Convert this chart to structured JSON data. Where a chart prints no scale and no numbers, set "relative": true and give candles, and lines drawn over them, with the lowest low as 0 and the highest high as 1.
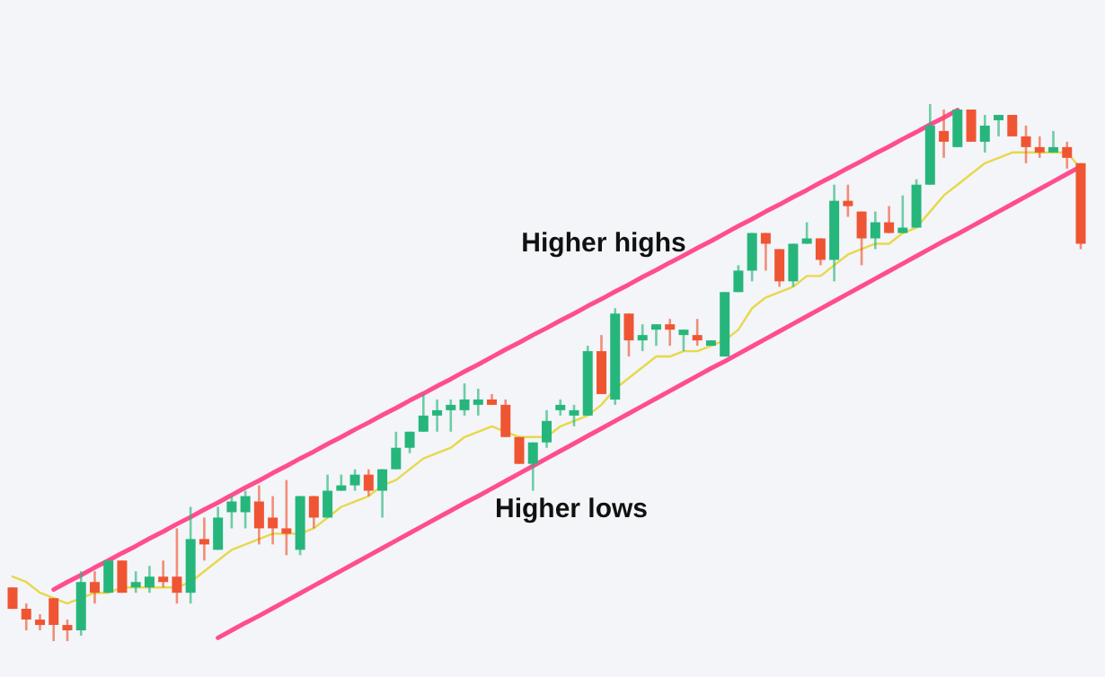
{
  "chart_data": {
    "type": "candlestick",
    "relative": true,
    "categories": [
      null,
      null,
      null,
      null,
      null,
      null,
      null,
      null,
      null,
      null,
      null,
      null,
      null,
      null,
      null,
      null,
      null,
      null,
      null,
      null,
      null,
      null,
      null,
      null,
      null,
      null,
      null,
      null,
      null,
      null,
      null,
      null,
      null,
      null,
      null,
      null,
      null,
      null,
      null,
      null,
      null,
      null,
      null,
      null,
      null,
      null,
      null,
      null,
      null,
      null,
      null,
      null,
      null,
      null,
      null,
      null,
      null,
      null,
      null,
      null,
      null,
      null,
      null,
      null,
      null,
      null,
      null,
      null,
      null,
      null,
      null,
      null,
      null,
      null,
      null,
      null,
      null,
      null,
      null
    ],
    "ohlc": [
      [
        0.1,
        0.1,
        0.06,
        0.06
      ],
      [
        0.06,
        0.07,
        0.02,
        0.04
      ],
      [
        0.04,
        0.05,
        0.02,
        0.03
      ],
      [
        0.08,
        0.08,
        0,
        0.03
      ],
      [
        0.03,
        0.04,
        0,
        0.02
      ],
      [
        0.02,
        0.13,
        0.01,
        0.11
      ],
      [
        0.11,
        0.13,
        0.07,
        0.09
      ],
      [
        0.09,
        0.15,
        0.09,
        0.15
      ],
      [
        0.15,
        0.15,
        0.09,
        0.09
      ],
      [
        0.1,
        0.13,
        0.09,
        0.11
      ],
      [
        0.1,
        0.14,
        0.09,
        0.12
      ],
      [
        0.12,
        0.15,
        0.1,
        0.11
      ],
      [
        0.12,
        0.21,
        0.07,
        0.09
      ],
      [
        0.09,
        0.25,
        0.07,
        0.19
      ],
      [
        0.19,
        0.23,
        0.15,
        0.18
      ],
      [
        0.17,
        0.25,
        0.17,
        0.23
      ],
      [
        0.24,
        0.27,
        0.21,
        0.26
      ],
      [
        0.24,
        0.28,
        0.21,
        0.27
      ],
      [
        0.26,
        0.29,
        0.18,
        0.21
      ],
      [
        0.23,
        0.27,
        0.18,
        0.21
      ],
      [
        0.21,
        0.3,
        0.16,
        0.2
      ],
      [
        0.17,
        0.27,
        0.16,
        0.27
      ],
      [
        0.27,
        0.27,
        0.21,
        0.23
      ],
      [
        0.23,
        0.31,
        0.23,
        0.28
      ],
      [
        0.28,
        0.31,
        0.28,
        0.29
      ],
      [
        0.29,
        0.32,
        0.28,
        0.31
      ],
      [
        0.31,
        0.32,
        0.27,
        0.28
      ],
      [
        0.28,
        0.32,
        0.23,
        0.32
      ],
      [
        0.32,
        0.39,
        0.32,
        0.36
      ],
      [
        0.36,
        0.39,
        0.35,
        0.39
      ],
      [
        0.39,
        0.46,
        0.39,
        0.42
      ],
      [
        0.42,
        0.45,
        0.39,
        0.43
      ],
      [
        0.43,
        0.45,
        0.39,
        0.44
      ],
      [
        0.43,
        0.48,
        0.42,
        0.45
      ],
      [
        0.44,
        0.47,
        0.42,
        0.45
      ],
      [
        0.45,
        0.46,
        0.44,
        0.44
      ],
      [
        0.44,
        0.45,
        0.38,
        0.38
      ],
      [
        0.38,
        0.38,
        0.33,
        0.33
      ],
      [
        0.33,
        0.37,
        0.28,
        0.37
      ],
      [
        0.37,
        0.43,
        0.36,
        0.41
      ],
      [
        0.43,
        0.45,
        0.42,
        0.44
      ],
      [
        0.42,
        0.44,
        0.4,
        0.43
      ],
      [
        0.42,
        0.55,
        0.42,
        0.54
      ],
      [
        0.54,
        0.57,
        0.46,
        0.46
      ],
      [
        0.45,
        0.62,
        0.44,
        0.61
      ],
      [
        0.61,
        0.61,
        0.53,
        0.56
      ],
      [
        0.56,
        0.59,
        0.54,
        0.57
      ],
      [
        0.58,
        0.59,
        0.55,
        0.59
      ],
      [
        0.59,
        0.6,
        0.55,
        0.58
      ],
      [
        0.57,
        0.58,
        0.54,
        0.58
      ],
      [
        0.57,
        0.6,
        0.55,
        0.56
      ],
      [
        0.55,
        0.56,
        0.55,
        0.56
      ],
      [
        0.53,
        0.65,
        0.53,
        0.65
      ],
      [
        0.65,
        0.7,
        0.65,
        0.69
      ],
      [
        0.69,
        0.76,
        0.67,
        0.76
      ],
      [
        0.76,
        0.76,
        0.69,
        0.74
      ],
      [
        0.73,
        0.73,
        0.66,
        0.67
      ],
      [
        0.67,
        0.74,
        0.66,
        0.74
      ],
      [
        0.74,
        0.78,
        0.74,
        0.75
      ],
      [
        0.75,
        0.75,
        0.7,
        0.71
      ],
      [
        0.71,
        0.85,
        0.67,
        0.82
      ],
      [
        0.82,
        0.85,
        0.79,
        0.81
      ],
      [
        0.8,
        0.8,
        0.7,
        0.75
      ],
      [
        0.75,
        0.8,
        0.73,
        0.78
      ],
      [
        0.78,
        0.81,
        0.76,
        0.76
      ],
      [
        0.76,
        0.83,
        0.76,
        0.77
      ],
      [
        0.77,
        0.86,
        0.77,
        0.85
      ],
      [
        0.85,
        1,
        0.85,
        0.96
      ],
      [
        0.95,
        0.99,
        0.9,
        0.93
      ],
      [
        0.92,
        0.99,
        0.92,
        0.99
      ],
      [
        0.99,
        0.99,
        0.93,
        0.93
      ],
      [
        0.93,
        0.98,
        0.91,
        0.96
      ],
      [
        0.97,
        0.98,
        0.94,
        0.98
      ],
      [
        0.98,
        0.98,
        0.94,
        0.94
      ],
      [
        0.94,
        0.96,
        0.89,
        0.92
      ],
      [
        0.92,
        0.94,
        0.9,
        0.91
      ],
      [
        0.91,
        0.95,
        0.91,
        0.92
      ],
      [
        0.92,
        0.93,
        0.88,
        0.9
      ],
      [
        0.89,
        0.89,
        0.73,
        0.74
      ]
    ],
    "colors": [
      "#ef5533",
      "#ef5533",
      "#ef5533",
      "#ef5533",
      "#ef5533",
      "#26b67b",
      "#ef5533",
      "#26b67b",
      "#ef5533",
      "#26b67b",
      "#26b67b",
      "#ef5533",
      "#ef5533",
      "#26b67b",
      "#ef5533",
      "#26b67b",
      "#26b67b",
      "#26b67b",
      "#ef5533",
      "#ef5533",
      "#ef5533",
      "#26b67b",
      "#ef5533",
      "#26b67b",
      "#26b67b",
      "#26b67b",
      "#ef5533",
      "#26b67b",
      "#26b67b",
      "#26b67b",
      "#26b67b",
      "#26b67b",
      "#26b67b",
      "#26b67b",
      "#26b67b",
      "#ef5533",
      "#ef5533",
      "#ef5533",
      "#26b67b",
      "#26b67b",
      "#26b67b",
      "#26b67b",
      "#26b67b",
      "#ef5533",
      "#26b67b",
      "#ef5533",
      "#26b67b",
      "#26b67b",
      "#ef5533",
      "#26b67b",
      "#ef5533",
      "#26b67b",
      "#26b67b",
      "#26b67b",
      "#26b67b",
      "#ef5533",
      "#ef5533",
      "#26b67b",
      "#26b67b",
      "#ef5533",
      "#26b67b",
      "#ef5533",
      "#ef5533",
      "#26b67b",
      "#ef5533",
      "#26b67b",
      "#26b67b",
      "#26b67b",
      "#ef5533",
      "#26b67b",
      "#ef5533",
      "#26b67b",
      "#26b67b",
      "#ef5533",
      "#ef5533",
      "#ef5533",
      "#26b67b",
      "#ef5533",
      "#ef5533"
    ],
    "series": [
      {
        "type": "line",
        "color": "#e8d84a",
        "values": [
          0.12,
          0.11,
          0.09,
          0.08,
          0.07,
          0.08,
          0.09,
          0.09,
          0.1,
          0.1,
          0.1,
          0.1,
          0.1,
          0.11,
          0.13,
          0.15,
          0.17,
          0.18,
          0.19,
          0.2,
          0.2,
          0.2,
          0.21,
          0.23,
          0.25,
          0.26,
          0.27,
          0.29,
          0.3,
          0.32,
          0.34,
          0.35,
          0.36,
          0.38,
          0.39,
          0.4,
          0.39,
          0.38,
          0.38,
          0.38,
          0.4,
          0.41,
          0.42,
          0.44,
          0.47,
          0.49,
          0.51,
          0.53,
          0.53,
          0.54,
          0.54,
          0.55,
          0.56,
          0.58,
          0.62,
          0.64,
          0.65,
          0.66,
          0.68,
          0.68,
          0.7,
          0.72,
          0.73,
          0.74,
          0.74,
          0.76,
          0.77,
          0.8,
          0.83,
          0.85,
          0.87,
          0.89,
          0.9,
          0.91,
          0.91,
          0.91,
          0.91,
          0.91,
          0.88
        ]
      },
      {
        "type": "line",
        "color": "#ff4d8d",
        "values": [
          null,
          null,
          null,
          0.096,
          0.11,
          0.123,
          0.137,
          0.15,
          0.164,
          0.177,
          0.191,
          0.204,
          0.218,
          0.231,
          0.245,
          0.258,
          0.272,
          0.286,
          0.299,
          0.313,
          0.326,
          0.34,
          0.353,
          0.367,
          0.38,
          0.394,
          0.407,
          0.421,
          0.434,
          0.448,
          0.461,
          0.475,
          0.488,
          0.502,
          0.515,
          0.529,
          0.543,
          0.556,
          0.57,
          0.583,
          0.597,
          0.61,
          0.624,
          0.637,
          0.651,
          0.664,
          0.678,
          0.691,
          0.705,
          0.718,
          0.732,
          0.745,
          0.759,
          0.773,
          0.786,
          0.8,
          0.813,
          0.827,
          0.84,
          0.854,
          0.867,
          0.881,
          0.894,
          0.908,
          0.921,
          0.935,
          0.948,
          0.962,
          0.975,
          0.989,
          null,
          null,
          null,
          null,
          null,
          null,
          null,
          null,
          null
        ]
      },
      {
        "type": "line",
        "color": "#ff4d8d",
        "values": [
          null,
          null,
          null,
          null,
          null,
          null,
          null,
          null,
          null,
          null,
          null,
          null,
          null,
          null,
          null,
          0.006,
          0.02,
          0.034,
          0.047,
          0.061,
          0.075,
          0.089,
          0.103,
          0.117,
          0.131,
          0.145,
          0.159,
          0.173,
          0.187,
          0.201,
          0.215,
          0.229,
          0.243,
          0.257,
          0.27,
          0.284,
          0.298,
          0.312,
          0.326,
          0.34,
          0.354,
          0.368,
          0.382,
          0.396,
          0.41,
          0.424,
          0.438,
          0.452,
          0.466,
          0.48,
          0.494,
          0.508,
          0.521,
          0.535,
          0.549,
          0.563,
          0.577,
          0.591,
          0.605,
          0.619,
          0.633,
          0.647,
          0.661,
          0.675,
          0.689,
          0.703,
          0.717,
          0.731,
          0.745,
          0.758,
          0.772,
          0.786,
          0.8,
          0.814,
          0.828,
          0.842,
          0.856,
          0.87,
          0.884
        ]
      }
    ],
    "annotations": [
      "Higher highs",
      "Higher lows"
    ]
  }
}
